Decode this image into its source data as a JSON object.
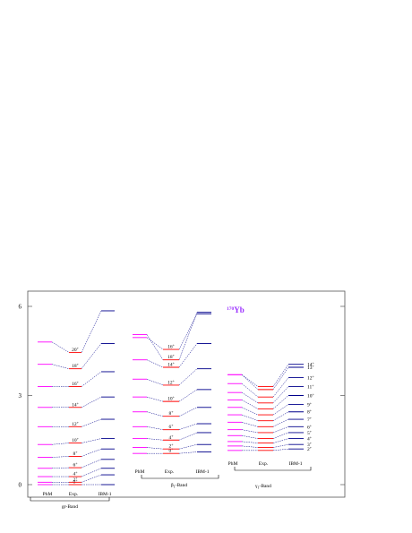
{
  "chart_data": {
    "type": "level-scheme",
    "title": "Yb",
    "mass_number": "170",
    "ylim": [
      0,
      6
    ],
    "yticks": [
      "0",
      "3",
      "6"
    ],
    "columns": [
      "PhM",
      "Exp.",
      "IBM-1"
    ],
    "colors": {
      "phm": "#ff00ff",
      "exp": "#ff0000",
      "ibm": "#00008b",
      "nucleus": "#9b30ff"
    },
    "bands": [
      {
        "name": "gr-Band",
        "levels": [
          {
            "spin": "0",
            "parity": "+",
            "phm": 0.0,
            "exp": 0.0,
            "ibm": 0.0
          },
          {
            "spin": "2",
            "parity": "+",
            "phm": 0.08,
            "exp": 0.08,
            "ibm": 0.33
          },
          {
            "spin": "4",
            "parity": "+",
            "phm": 0.27,
            "exp": 0.27,
            "ibm": 0.55
          },
          {
            "spin": "6",
            "parity": "+",
            "phm": 0.55,
            "exp": 0.57,
            "ibm": 0.85
          },
          {
            "spin": "8",
            "parity": "+",
            "phm": 0.92,
            "exp": 0.95,
            "ibm": 1.2
          },
          {
            "spin": "10",
            "parity": "+",
            "phm": 1.35,
            "exp": 1.4,
            "ibm": 1.55
          },
          {
            "spin": "12",
            "parity": "+",
            "phm": 1.95,
            "exp": 1.95,
            "ibm": 2.2
          },
          {
            "spin": "14",
            "parity": "+",
            "phm": 2.6,
            "exp": 2.6,
            "ibm": 2.95
          },
          {
            "spin": "16",
            "parity": "+",
            "phm": 3.3,
            "exp": 3.3,
            "ibm": 3.8
          },
          {
            "spin": "18",
            "parity": "+",
            "phm": 4.05,
            "exp": 3.9,
            "ibm": 4.75
          },
          {
            "spin": "20",
            "parity": "+",
            "phm": 4.8,
            "exp": 4.45,
            "ibm": 5.85
          }
        ]
      },
      {
        "name": "β1-Band",
        "name_main": "β",
        "name_sub": "1",
        "name_rest": "-Band",
        "levels": [
          {
            "spin": "0",
            "parity": "+",
            "phm": 1.05,
            "exp": 1.05,
            "ibm": 1.1
          },
          {
            "spin": "2",
            "parity": "+",
            "phm": 1.25,
            "exp": 1.2,
            "ibm": 1.35
          },
          {
            "spin": "4",
            "parity": "+",
            "phm": 1.55,
            "exp": 1.5,
            "ibm": 1.75
          },
          {
            "spin": "6",
            "parity": "+",
            "phm": 1.95,
            "exp": 1.85,
            "ibm": 2.05
          },
          {
            "spin": "8",
            "parity": "+",
            "phm": 2.45,
            "exp": 2.3,
            "ibm": 2.6
          },
          {
            "spin": "10",
            "parity": "+",
            "phm": 2.95,
            "exp": 2.8,
            "ibm": 3.2
          },
          {
            "spin": "12",
            "parity": "+",
            "phm": 3.55,
            "exp": 3.35,
            "ibm": 3.9
          },
          {
            "spin": "14",
            "parity": "+",
            "phm": 4.2,
            "exp": 3.95,
            "ibm": 4.75
          },
          {
            "spin": "16",
            "parity": "+",
            "phm": 4.95,
            "exp": 4.55,
            "ibm": 5.75
          },
          {
            "spin": "18",
            "parity": "+",
            "phm": 5.05,
            "exp": 4.2,
            "ibm": 5.8
          }
        ]
      },
      {
        "name": "γ1-Band",
        "name_main": "γ",
        "name_sub": "1",
        "name_rest": "-Band",
        "levels": [
          {
            "spin": "2",
            "parity": "+",
            "phm": 1.15,
            "exp": 1.15,
            "ibm": 1.2
          },
          {
            "spin": "3",
            "parity": "+",
            "phm": 1.3,
            "exp": 1.25,
            "ibm": 1.35
          },
          {
            "spin": "4",
            "parity": "+",
            "phm": 1.45,
            "exp": 1.4,
            "ibm": 1.55
          },
          {
            "spin": "5",
            "parity": "+",
            "phm": 1.65,
            "exp": 1.55,
            "ibm": 1.75
          },
          {
            "spin": "6",
            "parity": "+",
            "phm": 1.85,
            "exp": 1.75,
            "ibm": 1.95
          },
          {
            "spin": "7",
            "parity": "+",
            "phm": 2.1,
            "exp": 1.95,
            "ibm": 2.2
          },
          {
            "spin": "8",
            "parity": "+",
            "phm": 2.35,
            "exp": 2.15,
            "ibm": 2.45
          },
          {
            "spin": "9",
            "parity": "+",
            "phm": 2.6,
            "exp": 2.35,
            "ibm": 2.7
          },
          {
            "spin": "10",
            "parity": "+",
            "phm": 2.85,
            "exp": 2.55,
            "ibm": 3.0
          },
          {
            "spin": "11",
            "parity": "+",
            "phm": 3.1,
            "exp": 2.75,
            "ibm": 3.3
          },
          {
            "spin": "12",
            "parity": "+",
            "phm": 3.4,
            "exp": 2.95,
            "ibm": 3.6
          },
          {
            "spin": "13",
            "parity": "+",
            "phm": 3.7,
            "exp": 3.2,
            "ibm": 3.95
          },
          {
            "spin": "14",
            "parity": "+",
            "phm": 3.7,
            "exp": 3.3,
            "ibm": 4.05
          }
        ]
      }
    ]
  }
}
